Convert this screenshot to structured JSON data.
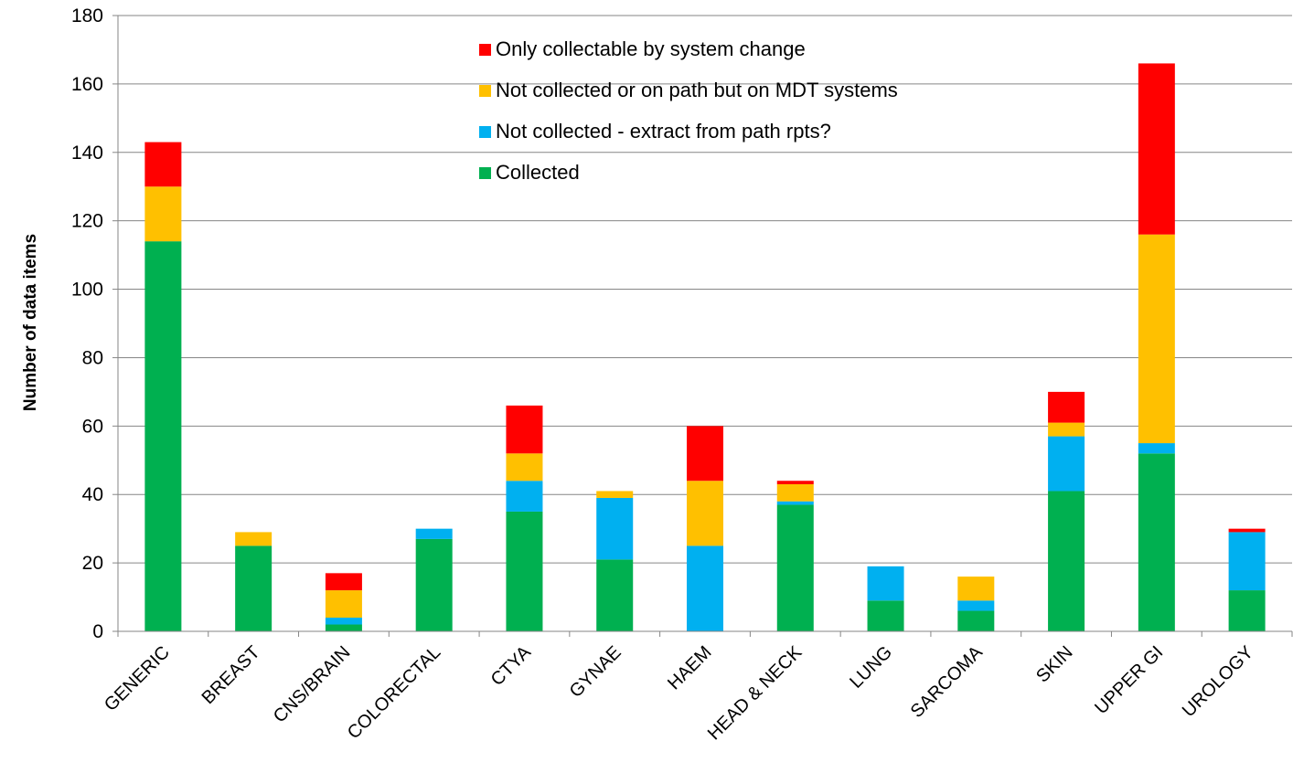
{
  "chart_data": {
    "type": "bar",
    "stacked": true,
    "title": "",
    "xlabel": "",
    "ylabel": "Number of data items",
    "ylim": [
      0,
      180
    ],
    "yticks": [
      0,
      20,
      40,
      60,
      80,
      100,
      120,
      140,
      160,
      180
    ],
    "grid": true,
    "legend_position": "top-center",
    "categories": [
      "GENERIC",
      "BREAST",
      "CNS/BRAIN",
      "COLORECTAL",
      "CTYA",
      "GYNAE",
      "HAEM",
      "HEAD & NECK",
      "LUNG",
      "SARCOMA",
      "SKIN",
      "UPPER GI",
      "UROLOGY"
    ],
    "series": [
      {
        "name": "Collected",
        "color": "#00b050",
        "values": [
          114,
          25,
          2,
          27,
          35,
          21,
          0,
          37,
          9,
          6,
          41,
          52,
          12
        ]
      },
      {
        "name": "Not collected - extract from path rpts?",
        "color": "#00b0f0",
        "values": [
          0,
          0,
          2,
          3,
          9,
          18,
          25,
          1,
          10,
          3,
          16,
          3,
          17
        ]
      },
      {
        "name": "Not collected or on path but on MDT systems",
        "color": "#ffc000",
        "values": [
          16,
          4,
          8,
          0,
          8,
          2,
          19,
          5,
          0,
          7,
          4,
          61,
          0
        ]
      },
      {
        "name": "Only collectable by system change",
        "color": "#ff0000",
        "values": [
          13,
          0,
          5,
          0,
          14,
          0,
          16,
          1,
          0,
          0,
          9,
          50,
          1
        ]
      }
    ]
  }
}
